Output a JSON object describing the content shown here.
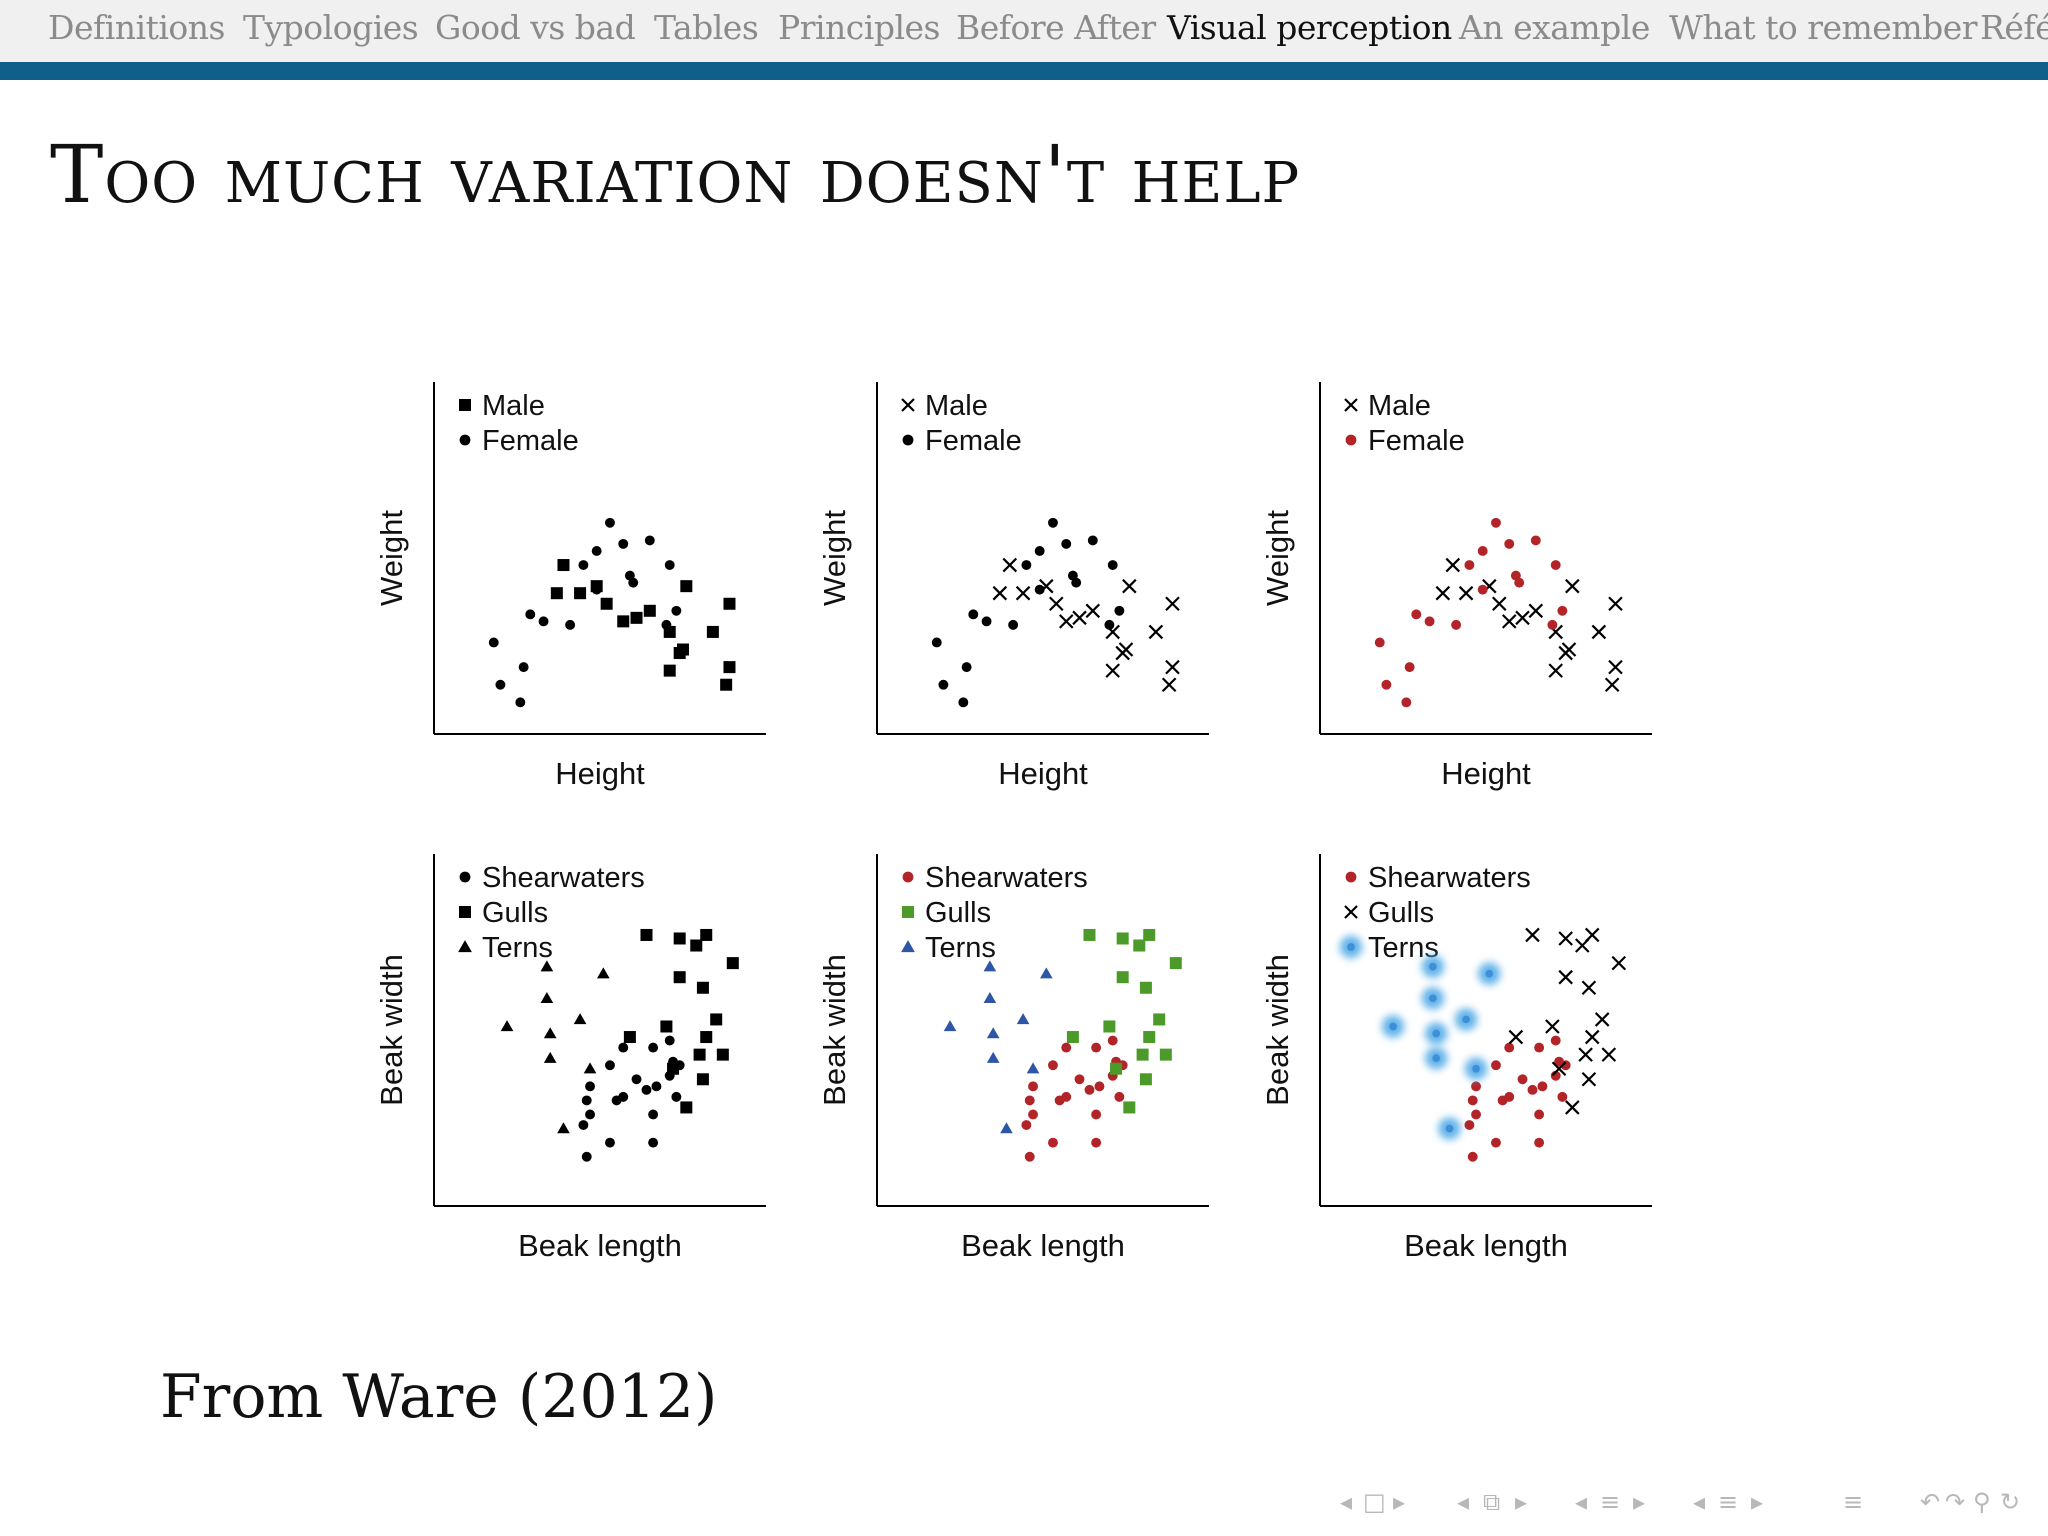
{
  "nav": {
    "items": [
      "Definitions",
      "Typologies",
      "Good vs bad",
      "Tables",
      "Principles",
      "Before After",
      "Visual perception",
      "An example",
      "What to remember",
      "Réfé"
    ],
    "active_index": 6
  },
  "slide": {
    "title": "Too much variation doesn't help",
    "source": "From Ware (2012)"
  },
  "colors": {
    "nav_rule": "#0f5f8a",
    "red": "#b32428",
    "green": "#4c9a2a",
    "blue": "#2f56a6",
    "blue_glow": "#5aaee8"
  },
  "chart_data": [
    {
      "type": "scatter",
      "xlabel": "Height",
      "ylabel": "Weight",
      "legend": [
        {
          "label": "Male",
          "marker": "square",
          "color": "#000000"
        },
        {
          "label": "Female",
          "marker": "circle",
          "color": "#000000"
        }
      ],
      "series": [
        {
          "name": "Male",
          "points": [
            [
              39,
              48
            ],
            [
              49,
              42
            ],
            [
              37,
              40
            ],
            [
              44,
              40
            ],
            [
              52,
              37
            ],
            [
              65,
              35
            ],
            [
              76,
              42
            ],
            [
              61,
              33
            ],
            [
              57,
              32
            ],
            [
              71,
              29
            ],
            [
              84,
              29
            ],
            [
              89,
              37
            ],
            [
              75,
              24
            ],
            [
              74,
              23
            ],
            [
              89,
              19
            ],
            [
              88,
              14
            ],
            [
              71,
              18
            ]
          ]
        },
        {
          "name": "Female",
          "points": [
            [
              18,
              26
            ],
            [
              29,
              34
            ],
            [
              41,
              31
            ],
            [
              27,
              19
            ],
            [
              26,
              9
            ],
            [
              33,
              32
            ],
            [
              20,
              14
            ],
            [
              60,
              43
            ],
            [
              45,
              48
            ],
            [
              49,
              52
            ],
            [
              53,
              60
            ],
            [
              59,
              45
            ],
            [
              49,
              41
            ],
            [
              65,
              55
            ],
            [
              71,
              48
            ],
            [
              57,
              54
            ],
            [
              70,
              31
            ],
            [
              73,
              35
            ]
          ]
        }
      ]
    },
    {
      "type": "scatter",
      "xlabel": "Height",
      "ylabel": "Weight",
      "legend": [
        {
          "label": "Male",
          "marker": "x",
          "color": "#000000"
        },
        {
          "label": "Female",
          "marker": "circle",
          "color": "#000000"
        }
      ],
      "series": [
        {
          "name": "Male",
          "points": [
            [
              40,
              48
            ],
            [
              51,
              42
            ],
            [
              37,
              40
            ],
            [
              44,
              40
            ],
            [
              54,
              37
            ],
            [
              65,
              35
            ],
            [
              76,
              42
            ],
            [
              61,
              33
            ],
            [
              57,
              32
            ],
            [
              71,
              29
            ],
            [
              84,
              29
            ],
            [
              89,
              37
            ],
            [
              75,
              24
            ],
            [
              74,
              23
            ],
            [
              89,
              19
            ],
            [
              88,
              14
            ],
            [
              71,
              18
            ]
          ]
        },
        {
          "name": "Female",
          "points": [
            [
              18,
              26
            ],
            [
              29,
              34
            ],
            [
              41,
              31
            ],
            [
              27,
              19
            ],
            [
              26,
              9
            ],
            [
              33,
              32
            ],
            [
              20,
              14
            ],
            [
              60,
              43
            ],
            [
              45,
              48
            ],
            [
              49,
              52
            ],
            [
              53,
              60
            ],
            [
              59,
              45
            ],
            [
              49,
              41
            ],
            [
              65,
              55
            ],
            [
              71,
              48
            ],
            [
              57,
              54
            ],
            [
              70,
              31
            ],
            [
              73,
              35
            ]
          ]
        }
      ]
    },
    {
      "type": "scatter",
      "xlabel": "Height",
      "ylabel": "Weight",
      "legend": [
        {
          "label": "Male",
          "marker": "x",
          "color": "#000000"
        },
        {
          "label": "Female",
          "marker": "circle",
          "color": "#b32428"
        }
      ],
      "series": [
        {
          "name": "Male",
          "points": [
            [
              40,
              48
            ],
            [
              51,
              42
            ],
            [
              37,
              40
            ],
            [
              44,
              40
            ],
            [
              54,
              37
            ],
            [
              65,
              35
            ],
            [
              76,
              42
            ],
            [
              61,
              33
            ],
            [
              57,
              32
            ],
            [
              71,
              29
            ],
            [
              84,
              29
            ],
            [
              89,
              37
            ],
            [
              75,
              24
            ],
            [
              74,
              23
            ],
            [
              89,
              19
            ],
            [
              88,
              14
            ],
            [
              71,
              18
            ]
          ]
        },
        {
          "name": "Female",
          "points": [
            [
              18,
              26
            ],
            [
              29,
              34
            ],
            [
              41,
              31
            ],
            [
              27,
              19
            ],
            [
              26,
              9
            ],
            [
              33,
              32
            ],
            [
              20,
              14
            ],
            [
              60,
              43
            ],
            [
              45,
              48
            ],
            [
              49,
              52
            ],
            [
              53,
              60
            ],
            [
              59,
              45
            ],
            [
              49,
              41
            ],
            [
              65,
              55
            ],
            [
              71,
              48
            ],
            [
              57,
              54
            ],
            [
              70,
              31
            ],
            [
              73,
              35
            ]
          ]
        }
      ]
    },
    {
      "type": "scatter",
      "xlabel": "Beak length",
      "ylabel": "Beak width",
      "legend": [
        {
          "label": "Shearwaters",
          "marker": "circle",
          "color": "#000000"
        },
        {
          "label": "Gulls",
          "marker": "square",
          "color": "#000000"
        },
        {
          "label": "Terns",
          "marker": "triangle",
          "color": "#000000"
        }
      ],
      "series": [
        {
          "name": "Shearwaters",
          "points": [
            [
              47,
              26
            ],
            [
              53,
              40
            ],
            [
              57,
              45
            ],
            [
              61,
              36
            ],
            [
              66,
              45
            ],
            [
              71,
              47
            ],
            [
              72,
              41
            ],
            [
              67,
              34
            ],
            [
              73,
              31
            ],
            [
              71,
              37
            ],
            [
              74,
              40
            ],
            [
              66,
              18
            ],
            [
              46,
              30
            ],
            [
              46,
              14
            ],
            [
              53,
              18
            ],
            [
              45,
              23
            ],
            [
              47,
              34
            ],
            [
              55,
              30
            ],
            [
              64,
              33
            ],
            [
              66,
              26
            ],
            [
              57,
              31
            ]
          ]
        },
        {
          "name": "Gulls",
          "points": [
            [
              64,
              77
            ],
            [
              74,
              76
            ],
            [
              79,
              74
            ],
            [
              74,
              65
            ],
            [
              82,
              77
            ],
            [
              90,
              69
            ],
            [
              85,
              53
            ],
            [
              87,
              43
            ],
            [
              82,
              48
            ],
            [
              70,
              51
            ],
            [
              81,
              62
            ],
            [
              76,
              28
            ],
            [
              59,
              48
            ],
            [
              81,
              36
            ],
            [
              72,
              39
            ],
            [
              80,
              43
            ]
          ]
        },
        {
          "name": "Terns",
          "points": [
            [
              34,
              68
            ],
            [
              51,
              66
            ],
            [
              44,
              53
            ],
            [
              34,
              59
            ],
            [
              22,
              51
            ],
            [
              35,
              42
            ],
            [
              35,
              49
            ],
            [
              39,
              22
            ],
            [
              47,
              39
            ]
          ]
        }
      ]
    },
    {
      "type": "scatter",
      "xlabel": "Beak length",
      "ylabel": "Beak width",
      "legend": [
        {
          "label": "Shearwaters",
          "marker": "circle",
          "color": "#b32428"
        },
        {
          "label": "Gulls",
          "marker": "square",
          "color": "#4c9a2a"
        },
        {
          "label": "Terns",
          "marker": "triangle",
          "color": "#2f56a6"
        }
      ],
      "series": [
        {
          "name": "Shearwaters",
          "points": [
            [
              47,
              26
            ],
            [
              53,
              40
            ],
            [
              57,
              45
            ],
            [
              61,
              36
            ],
            [
              66,
              45
            ],
            [
              71,
              47
            ],
            [
              72,
              41
            ],
            [
              67,
              34
            ],
            [
              73,
              31
            ],
            [
              71,
              37
            ],
            [
              74,
              40
            ],
            [
              66,
              18
            ],
            [
              46,
              30
            ],
            [
              46,
              14
            ],
            [
              53,
              18
            ],
            [
              45,
              23
            ],
            [
              47,
              34
            ],
            [
              55,
              30
            ],
            [
              64,
              33
            ],
            [
              66,
              26
            ],
            [
              57,
              31
            ]
          ]
        },
        {
          "name": "Gulls",
          "points": [
            [
              64,
              77
            ],
            [
              74,
              76
            ],
            [
              79,
              74
            ],
            [
              74,
              65
            ],
            [
              82,
              77
            ],
            [
              90,
              69
            ],
            [
              85,
              53
            ],
            [
              87,
              43
            ],
            [
              82,
              48
            ],
            [
              70,
              51
            ],
            [
              81,
              62
            ],
            [
              76,
              28
            ],
            [
              59,
              48
            ],
            [
              81,
              36
            ],
            [
              72,
              39
            ],
            [
              80,
              43
            ]
          ]
        },
        {
          "name": "Terns",
          "points": [
            [
              34,
              68
            ],
            [
              51,
              66
            ],
            [
              44,
              53
            ],
            [
              34,
              59
            ],
            [
              22,
              51
            ],
            [
              35,
              42
            ],
            [
              35,
              49
            ],
            [
              39,
              22
            ],
            [
              47,
              39
            ]
          ]
        }
      ]
    },
    {
      "type": "scatter",
      "xlabel": "Beak length",
      "ylabel": "Beak width",
      "legend": [
        {
          "label": "Shearwaters",
          "marker": "circle",
          "color": "#b32428"
        },
        {
          "label": "Gulls",
          "marker": "x",
          "color": "#000000"
        },
        {
          "label": "Terns",
          "marker": "glow",
          "color": "#5aaee8"
        }
      ],
      "series": [
        {
          "name": "Shearwaters",
          "points": [
            [
              47,
              26
            ],
            [
              53,
              40
            ],
            [
              57,
              45
            ],
            [
              61,
              36
            ],
            [
              66,
              45
            ],
            [
              71,
              47
            ],
            [
              72,
              41
            ],
            [
              67,
              34
            ],
            [
              73,
              31
            ],
            [
              71,
              37
            ],
            [
              74,
              40
            ],
            [
              66,
              18
            ],
            [
              46,
              30
            ],
            [
              46,
              14
            ],
            [
              53,
              18
            ],
            [
              45,
              23
            ],
            [
              47,
              34
            ],
            [
              55,
              30
            ],
            [
              64,
              33
            ],
            [
              66,
              26
            ],
            [
              57,
              31
            ]
          ]
        },
        {
          "name": "Gulls",
          "points": [
            [
              64,
              77
            ],
            [
              74,
              76
            ],
            [
              79,
              74
            ],
            [
              74,
              65
            ],
            [
              82,
              77
            ],
            [
              90,
              69
            ],
            [
              85,
              53
            ],
            [
              87,
              43
            ],
            [
              82,
              48
            ],
            [
              70,
              51
            ],
            [
              81,
              62
            ],
            [
              76,
              28
            ],
            [
              59,
              48
            ],
            [
              81,
              36
            ],
            [
              72,
              39
            ],
            [
              80,
              43
            ]
          ]
        },
        {
          "name": "Terns",
          "points": [
            [
              34,
              68
            ],
            [
              51,
              66
            ],
            [
              44,
              53
            ],
            [
              34,
              59
            ],
            [
              22,
              51
            ],
            [
              35,
              42
            ],
            [
              35,
              49
            ],
            [
              39,
              22
            ],
            [
              47,
              39
            ]
          ]
        }
      ]
    }
  ]
}
